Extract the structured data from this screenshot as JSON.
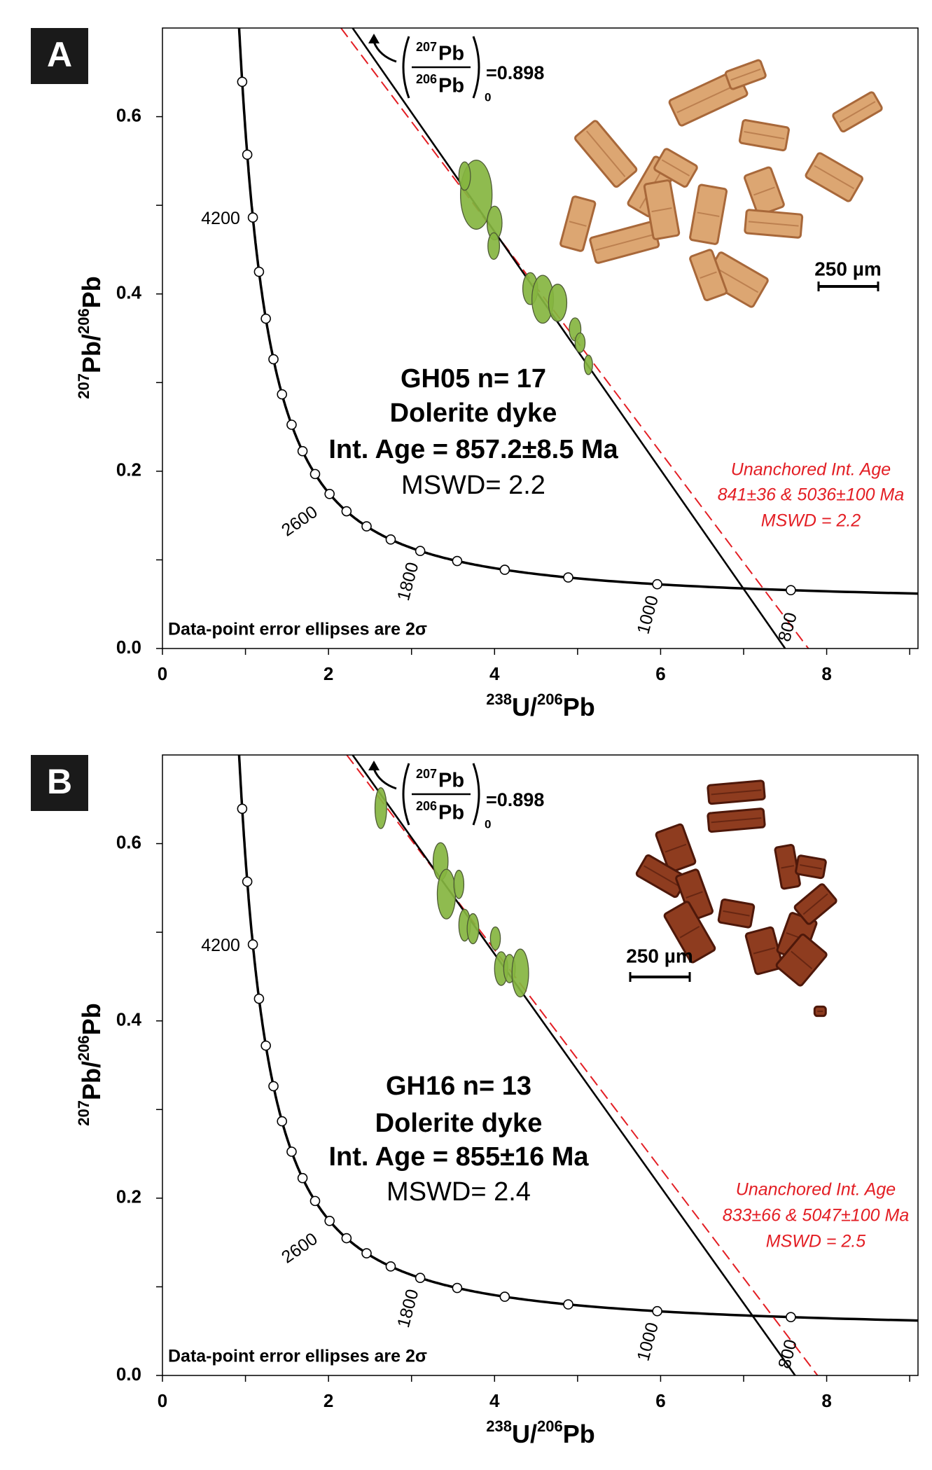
{
  "chart_data": [
    {
      "type": "scatter",
      "panel": "A",
      "xlim": [
        0,
        9.1
      ],
      "ylim": [
        0,
        0.7
      ],
      "xticks": [
        0,
        2,
        4,
        6,
        8
      ],
      "xminorticks": [
        1,
        3,
        5,
        7,
        9
      ],
      "yticks": [
        {
          "value": 0,
          "label": "0.0"
        },
        0.2,
        0.4,
        0.6
      ],
      "yminorticks": [
        0.1,
        0.3,
        0.5
      ],
      "xlabel": [
        "238",
        "U/",
        "206",
        "Pb"
      ],
      "ylabel": [
        "207",
        "Pb/",
        "206",
        "Pb"
      ],
      "x": [
        3.78,
        3.64,
        4.0,
        3.99,
        4.43,
        4.58,
        4.76,
        4.97,
        5.03,
        5.13
      ],
      "values": [
        0.512,
        0.533,
        0.48,
        0.454,
        0.406,
        0.394,
        0.39,
        0.36,
        0.345,
        0.32
      ],
      "x_err": [
        0.19,
        0.07,
        0.09,
        0.07,
        0.09,
        0.13,
        0.11,
        0.07,
        0.06,
        0.05
      ],
      "y_err": [
        0.039,
        0.016,
        0.019,
        0.015,
        0.018,
        0.027,
        0.021,
        0.013,
        0.011,
        0.011
      ],
      "color": "#86b540",
      "concordia_ages": [
        800,
        1000,
        1200,
        1400,
        1600,
        1800,
        2000,
        2200,
        2400,
        2600,
        2800,
        3000,
        3200,
        3400,
        3600,
        3800,
        4000,
        4200,
        4400,
        4600
      ],
      "concordia_labels": [
        800,
        1000,
        1800,
        2600,
        4200
      ],
      "discordia": {
        "x": [
          2.29,
          7.5
        ],
        "values": [
          0.7,
          0
        ],
        "color": "#000000"
      },
      "unanchored": {
        "x": [
          2.15,
          7.78
        ],
        "values": [
          0.7,
          0
        ],
        "color": "#e31e24"
      },
      "anchor": {
        "top_mass": "207",
        "top_el": "Pb",
        "bottom_mass": "206",
        "bottom_el": "Pb",
        "sub": "0",
        "text": "=0.898"
      },
      "labels": [
        "GH05 n= 17",
        "Dolerite dyke",
        "Int. Age = 857.2±8.5 Ma",
        "MSWD= 2.2"
      ],
      "unanchored_labels": [
        "Unanchored Int. Age",
        "841±36 & 5036±100 Ma",
        "MSWD = 2.2"
      ],
      "note": "Data-point error ellipses are 2σ",
      "scale_bar": "250 µm"
    },
    {
      "type": "scatter",
      "panel": "B",
      "xlim": [
        0,
        9.1
      ],
      "ylim": [
        0,
        0.7
      ],
      "xticks": [
        0,
        2,
        4,
        6,
        8
      ],
      "xminorticks": [
        1,
        3,
        5,
        7,
        9
      ],
      "yticks": [
        {
          "value": 0,
          "label": "0.0"
        },
        0.2,
        0.4,
        0.6
      ],
      "yminorticks": [
        0.1,
        0.3,
        0.5
      ],
      "xlabel": [
        "238",
        "U/",
        "206",
        "Pb"
      ],
      "ylabel": [
        "207",
        "Pb/",
        "206",
        "Pb"
      ],
      "x": [
        2.63,
        3.35,
        3.42,
        3.57,
        3.64,
        3.74,
        4.01,
        4.08,
        4.18,
        4.31
      ],
      "values": [
        0.64,
        0.58,
        0.543,
        0.554,
        0.508,
        0.504,
        0.493,
        0.459,
        0.459,
        0.454
      ],
      "x_err": [
        0.07,
        0.09,
        0.11,
        0.06,
        0.07,
        0.07,
        0.06,
        0.08,
        0.07,
        0.1
      ],
      "y_err": [
        0.023,
        0.021,
        0.028,
        0.016,
        0.018,
        0.017,
        0.013,
        0.019,
        0.016,
        0.027
      ],
      "color": "#86b540",
      "concordia_ages": [
        800,
        1000,
        1200,
        1400,
        1600,
        1800,
        2000,
        2200,
        2400,
        2600,
        2800,
        3000,
        3200,
        3400,
        3600,
        3800,
        4000,
        4200,
        4400,
        4600
      ],
      "concordia_labels": [
        800,
        1000,
        1800,
        2600,
        4200
      ],
      "discordia": {
        "x": [
          2.29,
          7.62
        ],
        "values": [
          0.7,
          0
        ],
        "color": "#000000"
      },
      "unanchored": {
        "x": [
          2.22,
          7.89
        ],
        "values": [
          0.7,
          0
        ],
        "color": "#e31e24"
      },
      "anchor": {
        "top_mass": "207",
        "top_el": "Pb",
        "bottom_mass": "206",
        "bottom_el": "Pb",
        "sub": "0",
        "text": "=0.898"
      },
      "labels": [
        "GH16 n= 13",
        "Dolerite dyke",
        "Int. Age = 855±16 Ma",
        "MSWD= 2.4"
      ],
      "unanchored_labels": [
        "Unanchored Int. Age",
        "833±66 & 5047±100 Ma",
        "MSWD = 2.5"
      ],
      "note": "Data-point error ellipses are 2σ",
      "scale_bar": "250 µm"
    }
  ]
}
